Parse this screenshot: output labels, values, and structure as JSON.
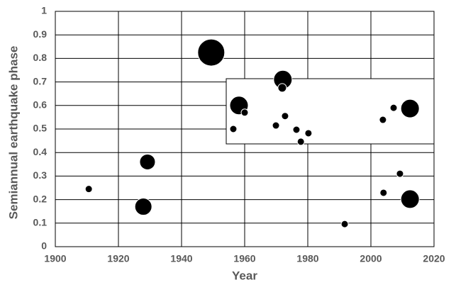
{
  "chart_data": {
    "type": "scatter",
    "x_label": "Year",
    "y_label": "Semiannual earthquake phase",
    "xlim": [
      1900,
      2020
    ],
    "xticks": [
      1900,
      1920,
      1940,
      1960,
      1980,
      2000,
      2020
    ],
    "ylim": [
      0,
      1
    ],
    "yticks": [
      0,
      0.1,
      0.2,
      0.3,
      0.4,
      0.5,
      0.6,
      0.7,
      0.8,
      0.9,
      1
    ],
    "grid": true,
    "color": "#000000",
    "x": [
      1910.6,
      1927.9,
      1929.2,
      1949.4,
      1972.1,
      1971.9,
      1958.2,
      1960,
      1956.4,
      1969.9,
      1972.8,
      1976.4,
      1980.2,
      1977.8,
      1991.7,
      2003.8,
      2007.2,
      2012.4,
      2009.2,
      2004,
      2012.4
    ],
    "values": [
      0.245,
      0.17,
      0.36,
      0.825,
      0.71,
      0.675,
      0.6,
      0.57,
      0.5,
      0.515,
      0.555,
      0.497,
      0.482,
      0.446,
      0.096,
      0.539,
      0.59,
      0.587,
      0.31,
      0.229,
      0.202
    ],
    "sizes": [
      5,
      12,
      11,
      19,
      13,
      6,
      13,
      5,
      5,
      5,
      5,
      5,
      5,
      5,
      5,
      5,
      5,
      13,
      5,
      5,
      13
    ]
  }
}
